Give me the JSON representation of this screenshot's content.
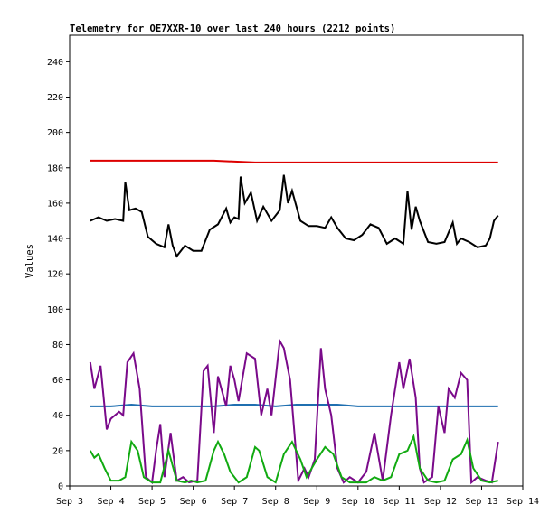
{
  "chart_data": {
    "type": "line",
    "title": "Telemetry for OE7XXR-10 over last 240 hours (2212 points)",
    "xlabel": "",
    "ylabel": "Values",
    "xlim": [
      3.0,
      14.0
    ],
    "ylim": [
      0,
      255
    ],
    "x_ticks": [
      {
        "value": 3,
        "label": "Sep 3"
      },
      {
        "value": 4,
        "label": "Sep 4"
      },
      {
        "value": 5,
        "label": "Sep 5"
      },
      {
        "value": 6,
        "label": "Sep 6"
      },
      {
        "value": 7,
        "label": "Sep 7"
      },
      {
        "value": 8,
        "label": "Sep 8"
      },
      {
        "value": 9,
        "label": "Sep 9"
      },
      {
        "value": 10,
        "label": "Sep 10"
      },
      {
        "value": 11,
        "label": "Sep 11"
      },
      {
        "value": 12,
        "label": "Sep 12"
      },
      {
        "value": 13,
        "label": "Sep 13"
      },
      {
        "value": 14,
        "label": "Sep 14"
      }
    ],
    "y_ticks": [
      {
        "value": 0,
        "label": "0"
      },
      {
        "value": 20,
        "label": "20"
      },
      {
        "value": 40,
        "label": "40"
      },
      {
        "value": 60,
        "label": "60"
      },
      {
        "value": 80,
        "label": "80"
      },
      {
        "value": 100,
        "label": "100"
      },
      {
        "value": 120,
        "label": "120"
      },
      {
        "value": 140,
        "label": "140"
      },
      {
        "value": 160,
        "label": "160"
      },
      {
        "value": 180,
        "label": "180"
      },
      {
        "value": 200,
        "label": "200"
      },
      {
        "value": 220,
        "label": "220"
      },
      {
        "value": 240,
        "label": "240"
      }
    ],
    "grid": false,
    "series": [
      {
        "color": "#dd0000",
        "x": [
          3.5,
          4.5,
          5.5,
          6.5,
          7.5,
          8.5,
          9.5,
          10.5,
          11.5,
          12.5,
          13.4
        ],
        "values": [
          184,
          184,
          184,
          184,
          183,
          183,
          183,
          183,
          183,
          183,
          183
        ]
      },
      {
        "color": "#000000",
        "x": [
          3.5,
          3.7,
          3.9,
          4.1,
          4.3,
          4.35,
          4.45,
          4.6,
          4.75,
          4.9,
          5.1,
          5.3,
          5.4,
          5.5,
          5.6,
          5.7,
          5.8,
          6.0,
          6.2,
          6.4,
          6.6,
          6.8,
          6.9,
          7.0,
          7.1,
          7.15,
          7.25,
          7.4,
          7.55,
          7.7,
          7.9,
          8.1,
          8.2,
          8.3,
          8.4,
          8.6,
          8.8,
          9.0,
          9.2,
          9.35,
          9.5,
          9.7,
          9.9,
          10.1,
          10.3,
          10.5,
          10.7,
          10.9,
          11.1,
          11.2,
          11.3,
          11.4,
          11.5,
          11.7,
          11.9,
          12.1,
          12.3,
          12.4,
          12.5,
          12.7,
          12.9,
          13.1,
          13.2,
          13.3,
          13.4
        ],
        "values": [
          150,
          152,
          150,
          151,
          150,
          172,
          156,
          157,
          155,
          141,
          137,
          135,
          148,
          136,
          130,
          133,
          136,
          133,
          133,
          145,
          148,
          157,
          149,
          152,
          151,
          175,
          160,
          166,
          150,
          158,
          150,
          156,
          176,
          160,
          167,
          150,
          147,
          147,
          146,
          152,
          146,
          140,
          139,
          142,
          148,
          146,
          137,
          140,
          137,
          167,
          145,
          158,
          150,
          138,
          137,
          138,
          149,
          137,
          140,
          138,
          135,
          136,
          140,
          150,
          153
        ]
      },
      {
        "color": "#1f6fb0",
        "x": [
          3.5,
          4.0,
          4.5,
          5.0,
          5.5,
          6.0,
          6.5,
          7.0,
          7.5,
          8.0,
          8.5,
          9.0,
          9.5,
          10.0,
          10.5,
          11.0,
          11.5,
          12.0,
          12.5,
          13.0,
          13.4
        ],
        "values": [
          45,
          45,
          46,
          45,
          45,
          45,
          45,
          46,
          46,
          45,
          46,
          46,
          46,
          45,
          45,
          45,
          45,
          45,
          45,
          45,
          45
        ]
      },
      {
        "color": "#7a0a8a",
        "x": [
          3.5,
          3.6,
          3.75,
          3.9,
          4.0,
          4.2,
          4.3,
          4.4,
          4.55,
          4.7,
          4.85,
          5.0,
          5.1,
          5.2,
          5.3,
          5.45,
          5.6,
          5.75,
          5.9,
          6.1,
          6.25,
          6.35,
          6.5,
          6.6,
          6.8,
          6.9,
          7.0,
          7.1,
          7.3,
          7.5,
          7.65,
          7.8,
          7.9,
          8.1,
          8.2,
          8.35,
          8.55,
          8.7,
          8.8,
          8.95,
          9.1,
          9.2,
          9.35,
          9.5,
          9.65,
          9.8,
          10.0,
          10.2,
          10.4,
          10.6,
          10.8,
          11.0,
          11.1,
          11.25,
          11.4,
          11.5,
          11.6,
          11.8,
          11.95,
          12.1,
          12.2,
          12.35,
          12.5,
          12.65,
          12.75,
          12.9,
          13.1,
          13.25,
          13.4
        ],
        "values": [
          70,
          55,
          68,
          32,
          38,
          42,
          40,
          70,
          75,
          55,
          5,
          2,
          20,
          35,
          5,
          30,
          3,
          5,
          2,
          3,
          65,
          68,
          30,
          62,
          45,
          68,
          60,
          48,
          75,
          72,
          40,
          55,
          40,
          82,
          78,
          60,
          3,
          10,
          5,
          15,
          78,
          55,
          40,
          10,
          2,
          5,
          2,
          8,
          30,
          3,
          40,
          70,
          55,
          72,
          50,
          10,
          2,
          5,
          45,
          30,
          55,
          50,
          64,
          60,
          2,
          5,
          3,
          2,
          25
        ]
      },
      {
        "color": "#11aa11",
        "x": [
          3.5,
          3.6,
          3.7,
          3.85,
          4.0,
          4.2,
          4.35,
          4.5,
          4.65,
          4.8,
          5.0,
          5.2,
          5.4,
          5.6,
          5.8,
          5.95,
          6.1,
          6.3,
          6.5,
          6.6,
          6.75,
          6.9,
          7.1,
          7.3,
          7.5,
          7.6,
          7.8,
          8.0,
          8.2,
          8.4,
          8.6,
          8.75,
          9.0,
          9.2,
          9.4,
          9.6,
          9.8,
          10.0,
          10.2,
          10.4,
          10.6,
          10.8,
          11.0,
          11.2,
          11.35,
          11.5,
          11.7,
          11.9,
          12.1,
          12.3,
          12.5,
          12.65,
          12.8,
          13.0,
          13.2,
          13.4
        ],
        "values": [
          20,
          16,
          18,
          10,
          3,
          3,
          5,
          25,
          20,
          5,
          2,
          2,
          20,
          3,
          2,
          3,
          2,
          3,
          20,
          25,
          18,
          8,
          2,
          5,
          22,
          20,
          5,
          2,
          18,
          25,
          15,
          5,
          15,
          22,
          18,
          5,
          2,
          2,
          2,
          5,
          3,
          5,
          18,
          20,
          28,
          10,
          3,
          2,
          3,
          15,
          18,
          26,
          10,
          3,
          2,
          3
        ]
      }
    ]
  }
}
